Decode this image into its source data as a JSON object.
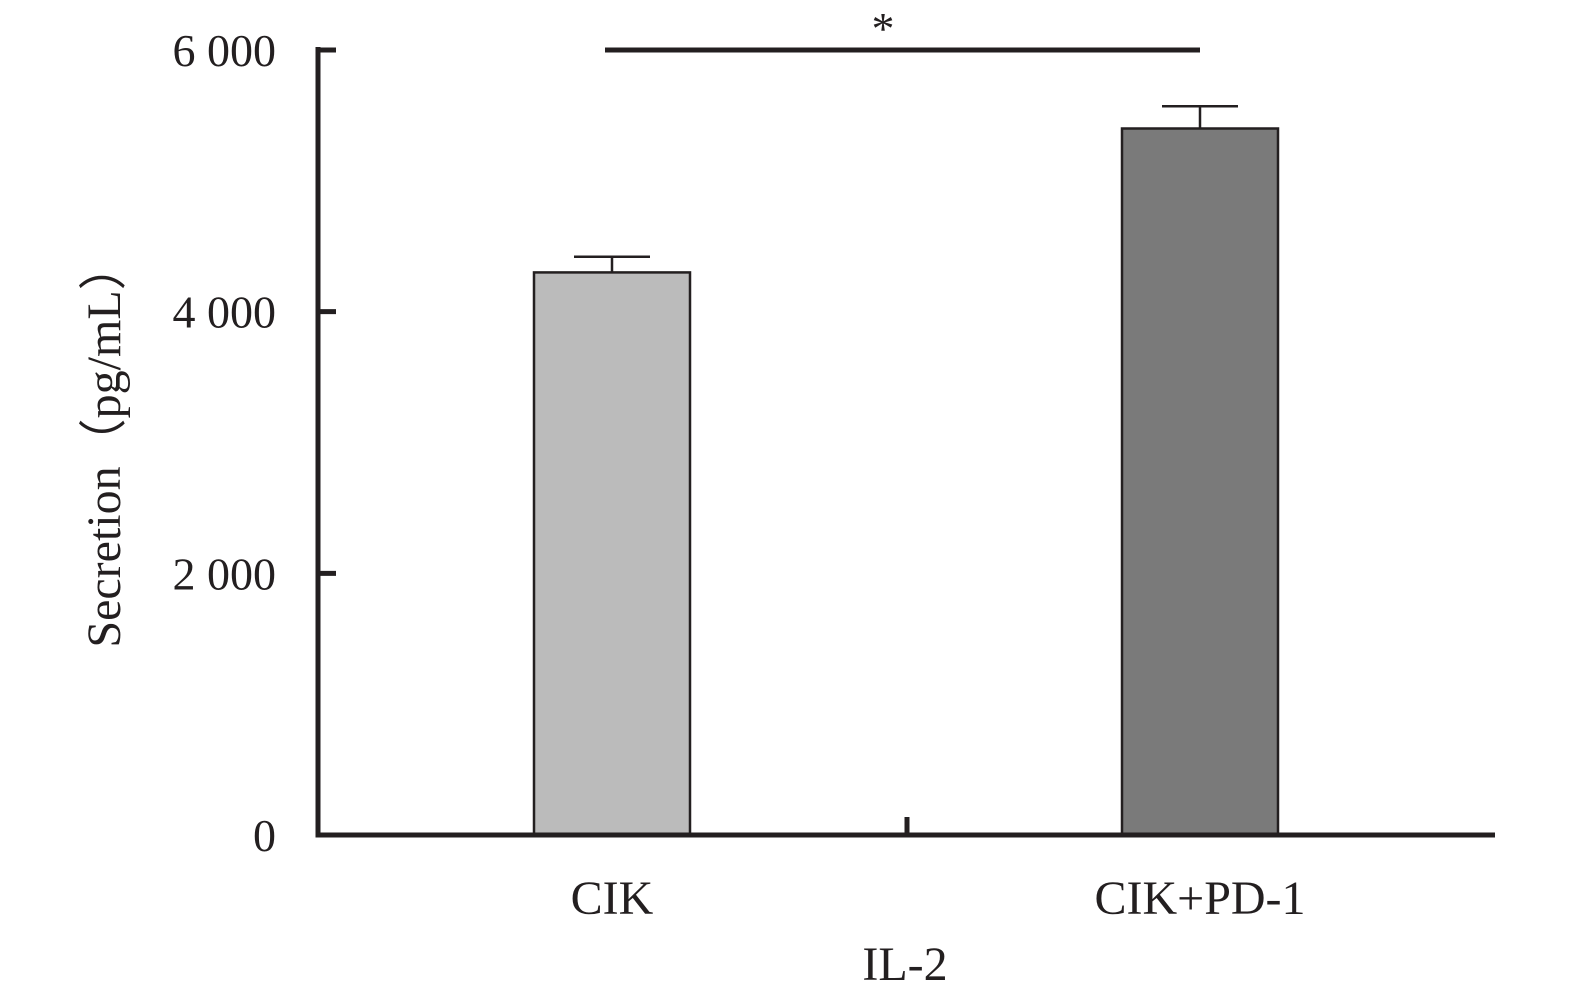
{
  "chart_data": {
    "type": "bar",
    "categories": [
      "CIK",
      "CIK+PD-1"
    ],
    "values": [
      4300,
      5400
    ],
    "errors": [
      120,
      170
    ],
    "xlabel": "IL-2",
    "ylabel": "Secretion（pg/mL）",
    "ylim": [
      0,
      6000
    ],
    "yticks": [
      0,
      2000,
      4000,
      6000
    ],
    "ytick_labels": [
      "0",
      "2 000",
      "4 000",
      "6 000"
    ],
    "colors": [
      "#bbbbbb",
      "#7a7a7a"
    ],
    "axis_color": "#231f20",
    "annotations": [
      {
        "text": "*",
        "from": "CIK",
        "to": "CIK+PD-1"
      }
    ],
    "grid": false,
    "legend": "none"
  }
}
